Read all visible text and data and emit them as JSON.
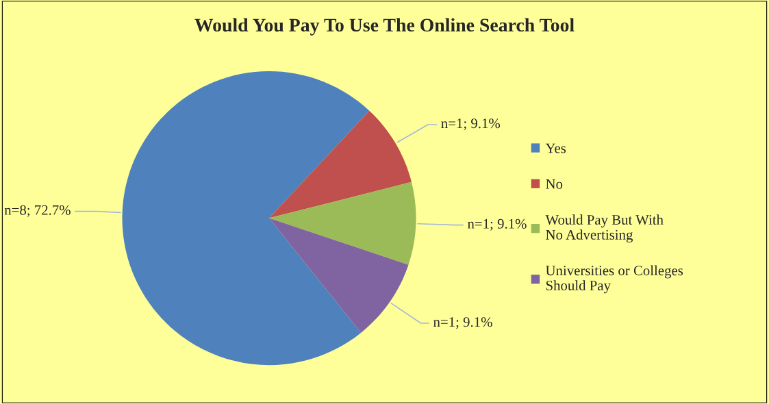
{
  "chart_data": {
    "type": "pie",
    "title": "Would You Pay To Use The Online Search Tool",
    "categories": [
      "Yes",
      "No",
      "Would Pay But With\nNo Advertising",
      "Universities or Colleges\nShould Pay"
    ],
    "values": [
      72.7,
      9.1,
      9.1,
      9.1
    ],
    "value_labels": [
      "n=8; 72.7%",
      "n=1; 9.1%",
      "n=1; 9.1%",
      "n=1; 9.1%"
    ],
    "colors": [
      "#4f81bd",
      "#c0504d",
      "#9bbb59",
      "#8064a2"
    ],
    "legend": "right"
  }
}
